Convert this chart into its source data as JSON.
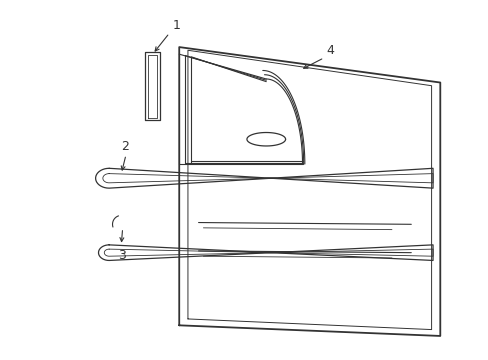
{
  "background_color": "#ffffff",
  "line_color": "#333333",
  "label_color": "#000000",
  "figsize": [
    4.89,
    3.6
  ],
  "dpi": 100
}
